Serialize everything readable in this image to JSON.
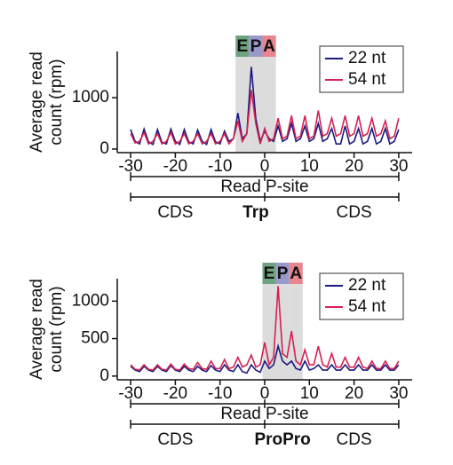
{
  "chart_data": [
    {
      "type": "line",
      "ylabel": [
        "Average read",
        "count (rpm)"
      ],
      "x": [
        -30,
        -29,
        -28,
        -27,
        -26,
        -25,
        -24,
        -23,
        -22,
        -21,
        -20,
        -19,
        -18,
        -17,
        -16,
        -15,
        -14,
        -13,
        -12,
        -11,
        -10,
        -9,
        -8,
        -7,
        -6,
        -5,
        -4,
        -3,
        -2,
        -1,
        0,
        1,
        2,
        3,
        4,
        5,
        6,
        7,
        8,
        9,
        10,
        11,
        12,
        13,
        14,
        15,
        16,
        17,
        18,
        19,
        20,
        21,
        22,
        23,
        24,
        25,
        26,
        27,
        28,
        29,
        30
      ],
      "series": [
        {
          "name": "22 nt",
          "color": "#1a1a80",
          "values": [
            380,
            150,
            100,
            390,
            140,
            90,
            380,
            130,
            100,
            390,
            150,
            90,
            380,
            140,
            100,
            370,
            150,
            90,
            380,
            140,
            100,
            350,
            150,
            200,
            700,
            200,
            300,
            1600,
            600,
            150,
            350,
            200,
            150,
            450,
            150,
            200,
            500,
            150,
            200,
            450,
            150,
            200,
            500,
            150,
            200,
            400,
            100,
            100,
            450,
            100,
            150,
            400,
            100,
            150,
            400,
            100,
            150,
            400,
            100,
            150,
            380
          ]
        },
        {
          "name": "54 nt",
          "color": "#d62050",
          "values": [
            300,
            120,
            150,
            320,
            100,
            150,
            300,
            100,
            150,
            320,
            100,
            150,
            300,
            100,
            150,
            300,
            100,
            150,
            300,
            100,
            150,
            300,
            100,
            200,
            550,
            150,
            300,
            1150,
            500,
            100,
            400,
            150,
            200,
            600,
            200,
            250,
            650,
            200,
            250,
            650,
            200,
            250,
            750,
            250,
            300,
            600,
            250,
            300,
            650,
            250,
            300,
            650,
            250,
            300,
            600,
            250,
            300,
            550,
            200,
            250,
            600
          ]
        }
      ],
      "xlim": [
        -33,
        33
      ],
      "xticks": [
        -30,
        -20,
        -10,
        0,
        10,
        20,
        30
      ],
      "ylim": [
        -70,
        1900
      ],
      "yticks": [
        0,
        1000
      ],
      "legend": "upper right",
      "sites": [
        {
          "label": "E",
          "start": -6.5,
          "end": -3.5,
          "color": "#6fa37f"
        },
        {
          "label": "P",
          "start": -3.5,
          "end": -0.5,
          "color": "#9999cc"
        },
        {
          "label": "A",
          "start": -0.5,
          "end": 2.5,
          "color": "#e9858f"
        }
      ],
      "xlabel": "Read P-site",
      "left_label": "CDS",
      "center_label": "Trp",
      "right_label": "CDS"
    },
    {
      "type": "line",
      "ylabel": [
        "Average read",
        "count (rpm)"
      ],
      "x": [
        -30,
        -29,
        -28,
        -27,
        -26,
        -25,
        -24,
        -23,
        -22,
        -21,
        -20,
        -19,
        -18,
        -17,
        -16,
        -15,
        -14,
        -13,
        -12,
        -11,
        -10,
        -9,
        -8,
        -7,
        -6,
        -5,
        -4,
        -3,
        -2,
        -1,
        0,
        1,
        2,
        3,
        4,
        5,
        6,
        7,
        8,
        9,
        10,
        11,
        12,
        13,
        14,
        15,
        16,
        17,
        18,
        19,
        20,
        21,
        22,
        23,
        24,
        25,
        26,
        27,
        28,
        29,
        30
      ],
      "series": [
        {
          "name": "22 nt",
          "color": "#1a1a80",
          "values": [
            130,
            80,
            60,
            130,
            80,
            60,
            130,
            80,
            60,
            140,
            80,
            60,
            130,
            80,
            60,
            130,
            80,
            60,
            140,
            80,
            60,
            150,
            80,
            60,
            150,
            60,
            40,
            150,
            80,
            50,
            200,
            100,
            150,
            400,
            200,
            150,
            200,
            100,
            80,
            200,
            80,
            100,
            150,
            80,
            80,
            150,
            80,
            80,
            150,
            80,
            80,
            150,
            80,
            80,
            150,
            80,
            80,
            150,
            80,
            80,
            150
          ]
        },
        {
          "name": "54 nt",
          "color": "#d62050",
          "values": [
            150,
            90,
            80,
            150,
            90,
            80,
            150,
            90,
            80,
            160,
            90,
            80,
            160,
            100,
            90,
            180,
            100,
            90,
            200,
            100,
            100,
            220,
            100,
            120,
            250,
            120,
            150,
            280,
            120,
            150,
            450,
            150,
            250,
            1200,
            300,
            250,
            600,
            200,
            150,
            350,
            150,
            150,
            400,
            150,
            120,
            300,
            120,
            120,
            250,
            120,
            120,
            250,
            120,
            100,
            200,
            100,
            100,
            200,
            100,
            100,
            200
          ]
        }
      ],
      "xlim": [
        -33,
        33
      ],
      "xticks": [
        -30,
        -20,
        -10,
        0,
        10,
        20,
        30
      ],
      "ylim": [
        -50,
        1300
      ],
      "yticks": [
        0,
        500,
        1000
      ],
      "legend": "upper right",
      "sites": [
        {
          "label": "E",
          "start": -0.5,
          "end": 2.5,
          "color": "#6fa37f"
        },
        {
          "label": "P",
          "start": 2.5,
          "end": 5.5,
          "color": "#9999cc"
        },
        {
          "label": "A",
          "start": 5.5,
          "end": 8.5,
          "color": "#e9858f"
        }
      ],
      "xlabel": "Read P-site",
      "left_label": "CDS",
      "center_label": "ProPro",
      "right_label": "CDS"
    }
  ]
}
